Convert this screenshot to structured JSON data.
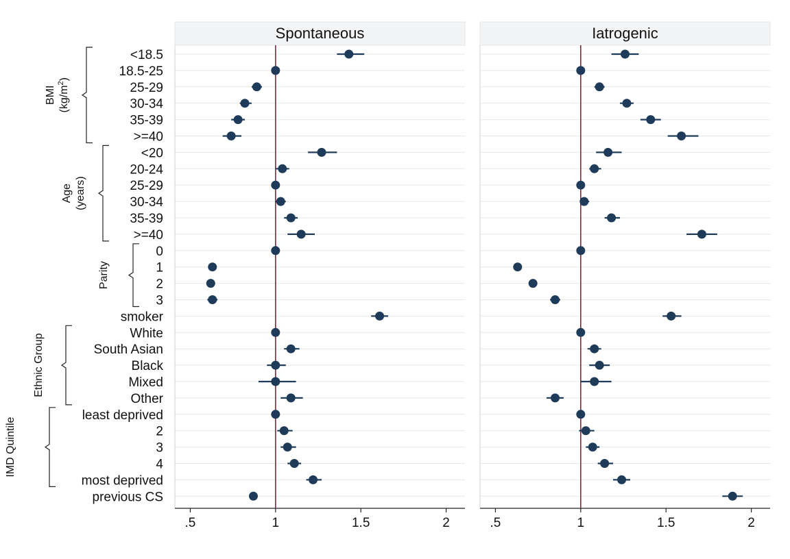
{
  "chart_data": {
    "type": "scatter",
    "subtype": "forest-plot",
    "colors": {
      "point": "#1f3b5a",
      "ci": "#1f3b5a",
      "reference_line": "#7b2a3a",
      "gridline": "#e8e8e8",
      "panel_header_bg": "#f3f4f6"
    },
    "x_axis": {
      "ticks": [
        0.5,
        1,
        1.5,
        2
      ],
      "tick_labels": [
        ".5",
        "1",
        "1.5",
        "2"
      ],
      "xlim": [
        0.45,
        2.07
      ],
      "reference_value": 1
    },
    "rows": [
      "<18.5",
      "18.5-25",
      "25-29",
      "30-34",
      "35-39",
      ">=40",
      "<20",
      "20-24",
      "25-29",
      "30-34",
      "35-39",
      ">=40",
      "0",
      "1",
      "2",
      "3",
      "smoker",
      "White",
      "South Asian",
      "Black",
      "Mixed",
      "Other",
      "least deprived",
      "2",
      "3",
      "4",
      "most deprived",
      "previous CS"
    ],
    "groups": [
      {
        "label": "BMI",
        "label2": "(kg/m",
        "sup": "2",
        "close": ")",
        "start": 0,
        "end": 5
      },
      {
        "label": "Age",
        "label2": "(years)",
        "start": 6,
        "end": 11
      },
      {
        "label": "Parity",
        "start": 12,
        "end": 15
      },
      {
        "label": "Ethnic Group",
        "start": 17,
        "end": 21
      },
      {
        "label": "IMD Quintile",
        "start": 22,
        "end": 26
      }
    ],
    "panels": [
      {
        "title": "Spontaneous",
        "points": [
          {
            "est": 1.43,
            "lo": 1.36,
            "hi": 1.52
          },
          {
            "est": 1.0,
            "lo": 1.0,
            "hi": 1.0
          },
          {
            "est": 0.89,
            "lo": 0.86,
            "hi": 0.92
          },
          {
            "est": 0.82,
            "lo": 0.79,
            "hi": 0.86
          },
          {
            "est": 0.78,
            "lo": 0.74,
            "hi": 0.82
          },
          {
            "est": 0.74,
            "lo": 0.69,
            "hi": 0.8
          },
          {
            "est": 1.27,
            "lo": 1.19,
            "hi": 1.36
          },
          {
            "est": 1.04,
            "lo": 1.0,
            "hi": 1.08
          },
          {
            "est": 1.0,
            "lo": 1.0,
            "hi": 1.0
          },
          {
            "est": 1.03,
            "lo": 1.0,
            "hi": 1.06
          },
          {
            "est": 1.09,
            "lo": 1.05,
            "hi": 1.13
          },
          {
            "est": 1.15,
            "lo": 1.07,
            "hi": 1.23
          },
          {
            "est": 1.0,
            "lo": 1.0,
            "hi": 1.0
          },
          {
            "est": 0.63,
            "lo": 0.61,
            "hi": 0.65
          },
          {
            "est": 0.62,
            "lo": 0.6,
            "hi": 0.64
          },
          {
            "est": 0.63,
            "lo": 0.6,
            "hi": 0.66
          },
          {
            "est": 1.61,
            "lo": 1.56,
            "hi": 1.66
          },
          {
            "est": 1.0,
            "lo": 1.0,
            "hi": 1.0
          },
          {
            "est": 1.09,
            "lo": 1.05,
            "hi": 1.14
          },
          {
            "est": 1.0,
            "lo": 0.95,
            "hi": 1.06
          },
          {
            "est": 1.0,
            "lo": 0.9,
            "hi": 1.12
          },
          {
            "est": 1.09,
            "lo": 1.03,
            "hi": 1.16
          },
          {
            "est": 1.0,
            "lo": 1.0,
            "hi": 1.0
          },
          {
            "est": 1.05,
            "lo": 1.01,
            "hi": 1.1
          },
          {
            "est": 1.07,
            "lo": 1.03,
            "hi": 1.12
          },
          {
            "est": 1.11,
            "lo": 1.07,
            "hi": 1.15
          },
          {
            "est": 1.22,
            "lo": 1.18,
            "hi": 1.27
          },
          {
            "est": 0.87,
            "lo": 0.85,
            "hi": 0.89
          }
        ]
      },
      {
        "title": "Iatrogenic",
        "points": [
          {
            "est": 1.26,
            "lo": 1.18,
            "hi": 1.34
          },
          {
            "est": 1.0,
            "lo": 1.0,
            "hi": 1.0
          },
          {
            "est": 1.11,
            "lo": 1.08,
            "hi": 1.14
          },
          {
            "est": 1.27,
            "lo": 1.23,
            "hi": 1.31
          },
          {
            "est": 1.41,
            "lo": 1.35,
            "hi": 1.47
          },
          {
            "est": 1.59,
            "lo": 1.51,
            "hi": 1.69
          },
          {
            "est": 1.16,
            "lo": 1.09,
            "hi": 1.24
          },
          {
            "est": 1.08,
            "lo": 1.05,
            "hi": 1.12
          },
          {
            "est": 1.0,
            "lo": 1.0,
            "hi": 1.0
          },
          {
            "est": 1.02,
            "lo": 1.0,
            "hi": 1.05
          },
          {
            "est": 1.18,
            "lo": 1.14,
            "hi": 1.23
          },
          {
            "est": 1.71,
            "lo": 1.62,
            "hi": 1.8
          },
          {
            "est": 1.0,
            "lo": 1.0,
            "hi": 1.0
          },
          {
            "est": 0.63,
            "lo": 0.61,
            "hi": 0.65
          },
          {
            "est": 0.72,
            "lo": 0.7,
            "hi": 0.74
          },
          {
            "est": 0.85,
            "lo": 0.82,
            "hi": 0.88
          },
          {
            "est": 1.53,
            "lo": 1.48,
            "hi": 1.59
          },
          {
            "est": 1.0,
            "lo": 1.0,
            "hi": 1.0
          },
          {
            "est": 1.08,
            "lo": 1.04,
            "hi": 1.12
          },
          {
            "est": 1.11,
            "lo": 1.05,
            "hi": 1.17
          },
          {
            "est": 1.08,
            "lo": 1.0,
            "hi": 1.18
          },
          {
            "est": 0.85,
            "lo": 0.8,
            "hi": 0.9
          },
          {
            "est": 1.0,
            "lo": 1.0,
            "hi": 1.0
          },
          {
            "est": 1.03,
            "lo": 0.99,
            "hi": 1.08
          },
          {
            "est": 1.07,
            "lo": 1.03,
            "hi": 1.11
          },
          {
            "est": 1.14,
            "lo": 1.1,
            "hi": 1.19
          },
          {
            "est": 1.24,
            "lo": 1.19,
            "hi": 1.29
          },
          {
            "est": 1.89,
            "lo": 1.83,
            "hi": 1.95
          }
        ]
      }
    ]
  }
}
